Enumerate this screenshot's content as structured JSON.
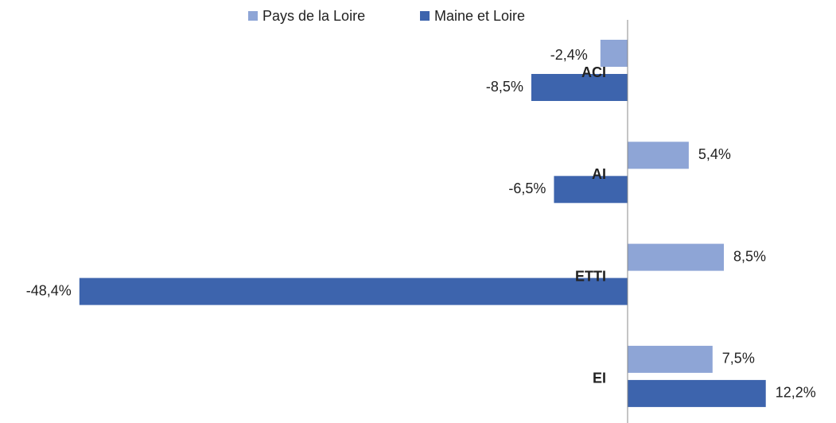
{
  "chart_data": {
    "type": "hbar",
    "categories": [
      "ACI",
      "AI",
      "ETTI",
      "EI"
    ],
    "series": [
      {
        "name": "Pays de la Loire",
        "color": "#8ea5d6",
        "values": [
          -2.4,
          5.4,
          8.5,
          7.5
        ],
        "value_labels": [
          "-2,4%",
          "5,4%",
          "8,5%",
          "7,5%"
        ]
      },
      {
        "name": "Maine et Loire",
        "color": "#3d64ad",
        "values": [
          -8.5,
          -6.5,
          -48.4,
          12.2
        ],
        "value_labels": [
          "-8,5%",
          "-6,5%",
          "-48,4%",
          "12,2%"
        ]
      }
    ],
    "legend": "top"
  }
}
